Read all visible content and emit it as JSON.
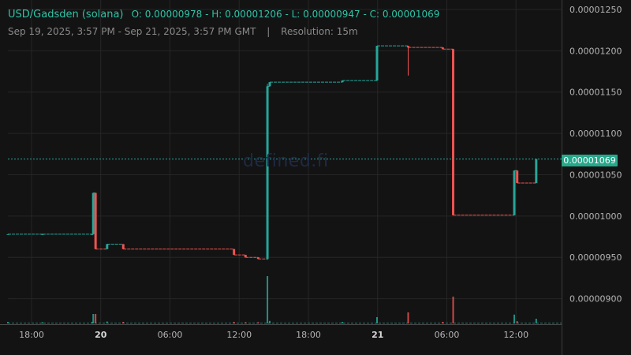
{
  "header": {
    "pair": "USD/Gadsden (solana)",
    "ohlc_text": "O: 0.00000978 - H: 0.00001206 - L: 0.00000947 - C: 0.00001069",
    "range": "Sep 19, 2025, 3:57 PM - Sep 21, 2025, 3:57 PM GMT",
    "separator": "|",
    "resolution": "Resolution: 15m"
  },
  "watermark": "defined.fi",
  "last_price_label": "0.00001069",
  "colors": {
    "background": "#131313",
    "grid": "#262626",
    "up": "#26a69a",
    "down": "#ef5350",
    "axis_text": "#b5b5b5",
    "badge": "#26a88b"
  },
  "chart_data": {
    "type": "candlestick",
    "ylim": [
      8.7e-06,
      1.25e-05
    ],
    "y_ticks": [
      {
        "value": 9e-06,
        "label": "0.00000900"
      },
      {
        "value": 9.5e-06,
        "label": "0.00000950"
      },
      {
        "value": 1e-05,
        "label": "0.00001000"
      },
      {
        "value": 1.05e-05,
        "label": "0.00001050"
      },
      {
        "value": 1.1e-05,
        "label": "0.00001100"
      },
      {
        "value": 1.15e-05,
        "label": "0.00001150"
      },
      {
        "value": 1.2e-05,
        "label": "0.00001200"
      },
      {
        "value": 1.25e-05,
        "label": "0.00001250"
      }
    ],
    "x_range_hours": [
      0,
      48
    ],
    "x_ticks": [
      {
        "t": 2.05,
        "label": "18:00",
        "bold": false
      },
      {
        "t": 8.05,
        "label": "20",
        "bold": true
      },
      {
        "t": 14.05,
        "label": "06:00",
        "bold": false
      },
      {
        "t": 20.05,
        "label": "12:00",
        "bold": false
      },
      {
        "t": 26.05,
        "label": "18:00",
        "bold": false
      },
      {
        "t": 32.05,
        "label": "21",
        "bold": true
      },
      {
        "t": 38.05,
        "label": "06:00",
        "bold": false
      },
      {
        "t": 44.05,
        "label": "12:00",
        "bold": false
      }
    ],
    "last_price": 1.069e-05,
    "candles": [
      {
        "t": 0.0,
        "o": 9.78e-06,
        "h": 9.78e-06,
        "l": 9.78e-06,
        "c": 9.78e-06,
        "v": 0.05
      },
      {
        "t": 3.0,
        "o": 9.78e-06,
        "h": 9.78e-06,
        "l": 9.78e-06,
        "c": 9.78e-06,
        "v": 0.04
      },
      {
        "t": 7.3,
        "o": 9.78e-06,
        "h": 9.78e-06,
        "l": 9.78e-06,
        "c": 9.78e-06,
        "v": 0.05
      },
      {
        "t": 7.4,
        "o": 9.78e-06,
        "h": 1.028e-05,
        "l": 9.78e-06,
        "c": 1.028e-05,
        "v": 0.3
      },
      {
        "t": 7.6,
        "o": 1.028e-05,
        "h": 1.028e-05,
        "l": 9.6e-06,
        "c": 9.6e-06,
        "v": 0.3
      },
      {
        "t": 8.6,
        "o": 9.6e-06,
        "h": 9.66e-06,
        "l": 9.6e-06,
        "c": 9.66e-06,
        "v": 0.06
      },
      {
        "t": 10.0,
        "o": 9.66e-06,
        "h": 9.66e-06,
        "l": 9.6e-06,
        "c": 9.6e-06,
        "v": 0.05
      },
      {
        "t": 19.6,
        "o": 9.6e-06,
        "h": 9.6e-06,
        "l": 9.53e-06,
        "c": 9.53e-06,
        "v": 0.05
      },
      {
        "t": 20.6,
        "o": 9.53e-06,
        "h": 9.53e-06,
        "l": 9.5e-06,
        "c": 9.5e-06,
        "v": 0.04
      },
      {
        "t": 21.7,
        "o": 9.5e-06,
        "h": 9.5e-06,
        "l": 9.48e-06,
        "c": 9.48e-06,
        "v": 0.04
      },
      {
        "t": 22.5,
        "o": 9.48e-06,
        "h": 1.16e-05,
        "l": 9.47e-06,
        "c": 1.157e-05,
        "v": 1.5
      },
      {
        "t": 22.7,
        "o": 1.157e-05,
        "h": 1.162e-05,
        "l": 1.157e-05,
        "c": 1.162e-05,
        "v": 0.08
      },
      {
        "t": 29.0,
        "o": 1.162e-05,
        "h": 1.164e-05,
        "l": 1.162e-05,
        "c": 1.164e-05,
        "v": 0.05
      },
      {
        "t": 32.0,
        "o": 1.164e-05,
        "h": 1.206e-05,
        "l": 1.164e-05,
        "c": 1.206e-05,
        "v": 0.2
      },
      {
        "t": 34.7,
        "o": 1.206e-05,
        "h": 1.206e-05,
        "l": 1.17e-05,
        "c": 1.204e-05,
        "v": 0.35
      },
      {
        "t": 37.7,
        "o": 1.204e-05,
        "h": 1.204e-05,
        "l": 1.202e-05,
        "c": 1.202e-05,
        "v": 0.05
      },
      {
        "t": 38.6,
        "o": 1.202e-05,
        "h": 1.202e-05,
        "l": 1.001e-05,
        "c": 1.001e-05,
        "v": 0.85
      },
      {
        "t": 43.9,
        "o": 1.001e-05,
        "h": 1.055e-05,
        "l": 1.001e-05,
        "c": 1.055e-05,
        "v": 0.28
      },
      {
        "t": 44.15,
        "o": 1.055e-05,
        "h": 1.055e-05,
        "l": 1.04e-05,
        "c": 1.04e-05,
        "v": 0.07
      },
      {
        "t": 45.8,
        "o": 1.04e-05,
        "h": 1.069e-05,
        "l": 1.04e-05,
        "c": 1.069e-05,
        "v": 0.15
      }
    ]
  }
}
